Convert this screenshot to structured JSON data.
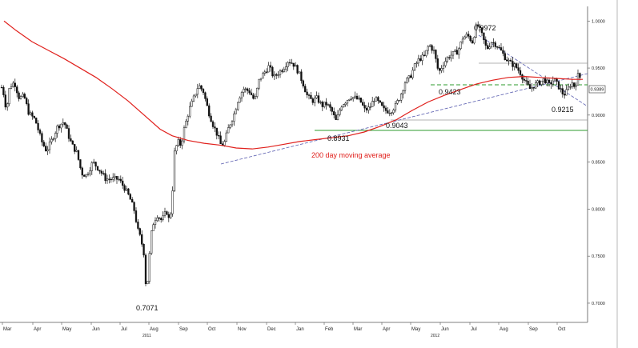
{
  "chart_data": {
    "type": "candlestick",
    "title": "",
    "xlabel": "",
    "ylabel": "",
    "ylim": [
      0.695,
      1.02
    ],
    "y_ticks": [
      "1.0000",
      "0.9500",
      "0.9000",
      "0.8500",
      "0.8000",
      "0.7500",
      "0.7000"
    ],
    "y_tick_values": [
      1.0,
      0.95,
      0.9,
      0.85,
      0.8,
      0.75,
      0.7
    ],
    "x_months": [
      "Mar",
      "Apr",
      "May",
      "Jun",
      "Jul",
      "Aug",
      "Sep",
      "Oct",
      "Nov",
      "Dec",
      "Jan",
      "Feb",
      "Mar",
      "Apr",
      "May",
      "Jun",
      "Jul",
      "Aug",
      "Sep",
      "Oct"
    ],
    "years": [
      "2011",
      "2012"
    ],
    "last_price": "0.9389",
    "price_path": [
      [
        0,
        0.934
      ],
      [
        4,
        0.925
      ],
      [
        8,
        0.905
      ],
      [
        12,
        0.93
      ],
      [
        18,
        0.935
      ],
      [
        24,
        0.918
      ],
      [
        30,
        0.92
      ],
      [
        36,
        0.902
      ],
      [
        44,
        0.895
      ],
      [
        52,
        0.872
      ],
      [
        58,
        0.862
      ],
      [
        64,
        0.872
      ],
      [
        72,
        0.888
      ],
      [
        80,
        0.893
      ],
      [
        86,
        0.877
      ],
      [
        90,
        0.868
      ],
      [
        96,
        0.86
      ],
      [
        102,
        0.838
      ],
      [
        108,
        0.836
      ],
      [
        116,
        0.85
      ],
      [
        124,
        0.842
      ],
      [
        132,
        0.832
      ],
      [
        140,
        0.832
      ],
      [
        148,
        0.832
      ],
      [
        156,
        0.822
      ],
      [
        162,
        0.812
      ],
      [
        168,
        0.798
      ],
      [
        172,
        0.778
      ],
      [
        176,
        0.768
      ],
      [
        180,
        0.752
      ],
      [
        183,
        0.7071
      ],
      [
        186,
        0.744
      ],
      [
        190,
        0.782
      ],
      [
        196,
        0.794
      ],
      [
        202,
        0.788
      ],
      [
        208,
        0.798
      ],
      [
        212,
        0.786
      ],
      [
        215,
        0.812
      ],
      [
        218,
        0.86
      ],
      [
        222,
        0.872
      ],
      [
        226,
        0.868
      ],
      [
        230,
        0.885
      ],
      [
        236,
        0.905
      ],
      [
        242,
        0.918
      ],
      [
        248,
        0.932
      ],
      [
        254,
        0.925
      ],
      [
        260,
        0.905
      ],
      [
        266,
        0.89
      ],
      [
        272,
        0.878
      ],
      [
        276,
        0.868
      ],
      [
        280,
        0.87
      ],
      [
        286,
        0.888
      ],
      [
        292,
        0.9
      ],
      [
        298,
        0.918
      ],
      [
        304,
        0.928
      ],
      [
        312,
        0.925
      ],
      [
        318,
        0.915
      ],
      [
        324,
        0.938
      ],
      [
        330,
        0.945
      ],
      [
        336,
        0.952
      ],
      [
        342,
        0.94
      ],
      [
        348,
        0.945
      ],
      [
        354,
        0.95
      ],
      [
        360,
        0.958
      ],
      [
        366,
        0.955
      ],
      [
        372,
        0.947
      ],
      [
        378,
        0.935
      ],
      [
        384,
        0.92
      ],
      [
        390,
        0.915
      ],
      [
        396,
        0.918
      ],
      [
        402,
        0.91
      ],
      [
        408,
        0.912
      ],
      [
        414,
        0.905
      ],
      [
        420,
        0.8931
      ],
      [
        426,
        0.91
      ],
      [
        432,
        0.915
      ],
      [
        438,
        0.92
      ],
      [
        444,
        0.918
      ],
      [
        450,
        0.915
      ],
      [
        456,
        0.905
      ],
      [
        462,
        0.908
      ],
      [
        468,
        0.918
      ],
      [
        474,
        0.912
      ],
      [
        480,
        0.905
      ],
      [
        488,
        0.9043
      ],
      [
        494,
        0.91
      ],
      [
        500,
        0.92
      ],
      [
        506,
        0.935
      ],
      [
        512,
        0.94
      ],
      [
        518,
        0.952
      ],
      [
        524,
        0.96
      ],
      [
        530,
        0.962
      ],
      [
        536,
        0.975
      ],
      [
        542,
        0.968
      ],
      [
        548,
        0.945
      ],
      [
        554,
        0.955
      ],
      [
        560,
        0.962
      ],
      [
        566,
        0.965
      ],
      [
        572,
        0.968
      ],
      [
        578,
        0.982
      ],
      [
        584,
        0.985
      ],
      [
        590,
        0.978
      ],
      [
        596,
        0.9972
      ],
      [
        602,
        0.985
      ],
      [
        608,
        0.97
      ],
      [
        614,
        0.978
      ],
      [
        620,
        0.975
      ],
      [
        626,
        0.968
      ],
      [
        632,
        0.96
      ],
      [
        638,
        0.955
      ],
      [
        644,
        0.952
      ],
      [
        650,
        0.945
      ],
      [
        656,
        0.935
      ],
      [
        662,
        0.928
      ],
      [
        668,
        0.932
      ],
      [
        674,
        0.935
      ],
      [
        680,
        0.938
      ],
      [
        686,
        0.932
      ],
      [
        692,
        0.938
      ],
      [
        698,
        0.93
      ],
      [
        704,
        0.9215
      ],
      [
        708,
        0.925
      ],
      [
        714,
        0.935
      ],
      [
        718,
        0.93
      ],
      [
        722,
        0.942
      ],
      [
        726,
        0.9389
      ]
    ],
    "moving_average": {
      "label": "200 day moving average",
      "color": "#e0201c",
      "points": [
        [
          5,
          1.0
        ],
        [
          20,
          0.99
        ],
        [
          40,
          0.978
        ],
        [
          60,
          0.969
        ],
        [
          80,
          0.96
        ],
        [
          100,
          0.95
        ],
        [
          120,
          0.94
        ],
        [
          140,
          0.928
        ],
        [
          160,
          0.915
        ],
        [
          180,
          0.9
        ],
        [
          200,
          0.885
        ],
        [
          215,
          0.878
        ],
        [
          235,
          0.873
        ],
        [
          255,
          0.87
        ],
        [
          275,
          0.868
        ],
        [
          295,
          0.865
        ],
        [
          315,
          0.864
        ],
        [
          335,
          0.866
        ],
        [
          355,
          0.869
        ],
        [
          375,
          0.872
        ],
        [
          395,
          0.874
        ],
        [
          415,
          0.876
        ],
        [
          435,
          0.878
        ],
        [
          455,
          0.882
        ],
        [
          475,
          0.888
        ],
        [
          495,
          0.895
        ],
        [
          515,
          0.905
        ],
        [
          535,
          0.914
        ],
        [
          555,
          0.921
        ],
        [
          575,
          0.927
        ],
        [
          595,
          0.933
        ],
        [
          615,
          0.937
        ],
        [
          635,
          0.94
        ],
        [
          655,
          0.941
        ],
        [
          675,
          0.94
        ],
        [
          695,
          0.939
        ],
        [
          715,
          0.938
        ],
        [
          728,
          0.938
        ]
      ]
    },
    "annotations": [
      {
        "label": "0.7071",
        "value": 0.7071
      },
      {
        "label": "0.8931",
        "value": 0.8931
      },
      {
        "label": "0.9043",
        "value": 0.9043
      },
      {
        "label": "0.9423",
        "value": 0.9423
      },
      {
        "label": "0.9972",
        "value": 0.9972
      },
      {
        "label": "0.9215",
        "value": 0.9215
      }
    ]
  }
}
